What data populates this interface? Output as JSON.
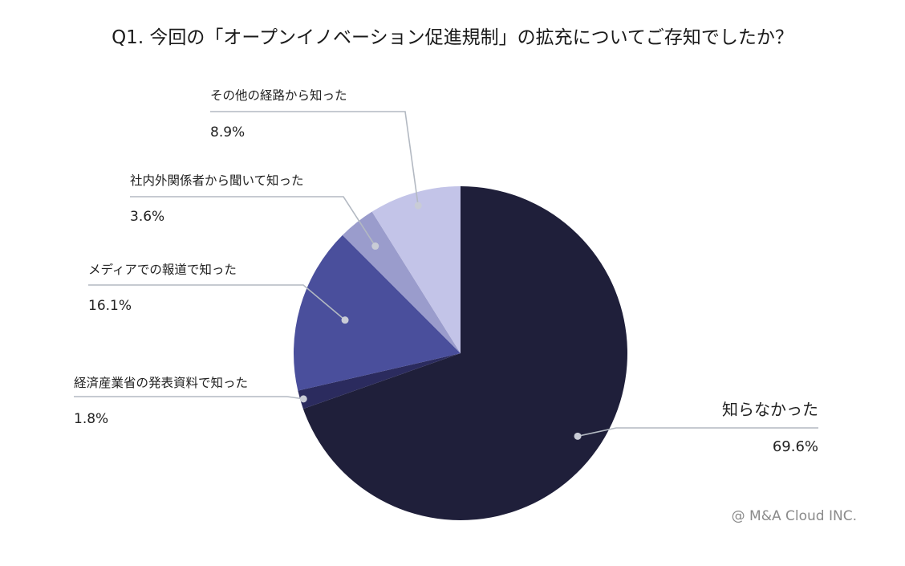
{
  "chart_data": {
    "type": "pie",
    "title": "Q1. 今回の「オープンイノベーション促進規制」の拡充についてご存知でしたか？",
    "slices": [
      {
        "label": "知らなかった",
        "value": 69.6,
        "display": "69.6%",
        "color": "#1f1f3a"
      },
      {
        "label": "経済産業省の発表資料で知った",
        "value": 1.8,
        "display": "1.8%",
        "color": "#2b2b5e"
      },
      {
        "label": "メディアでの報道で知った",
        "value": 16.1,
        "display": "16.1%",
        "color": "#4a4f9c"
      },
      {
        "label": "社内外関係者から聞いて知った",
        "value": 3.6,
        "display": "3.6%",
        "color": "#9a9ccc"
      },
      {
        "label": "その他の経路から知った",
        "value": 8.9,
        "display": "8.9%",
        "color": "#c3c4e8"
      }
    ],
    "start_angle": "12 o'clock",
    "direction": "clockwise",
    "legend": "none"
  },
  "credit": "@ M&A Cloud INC."
}
